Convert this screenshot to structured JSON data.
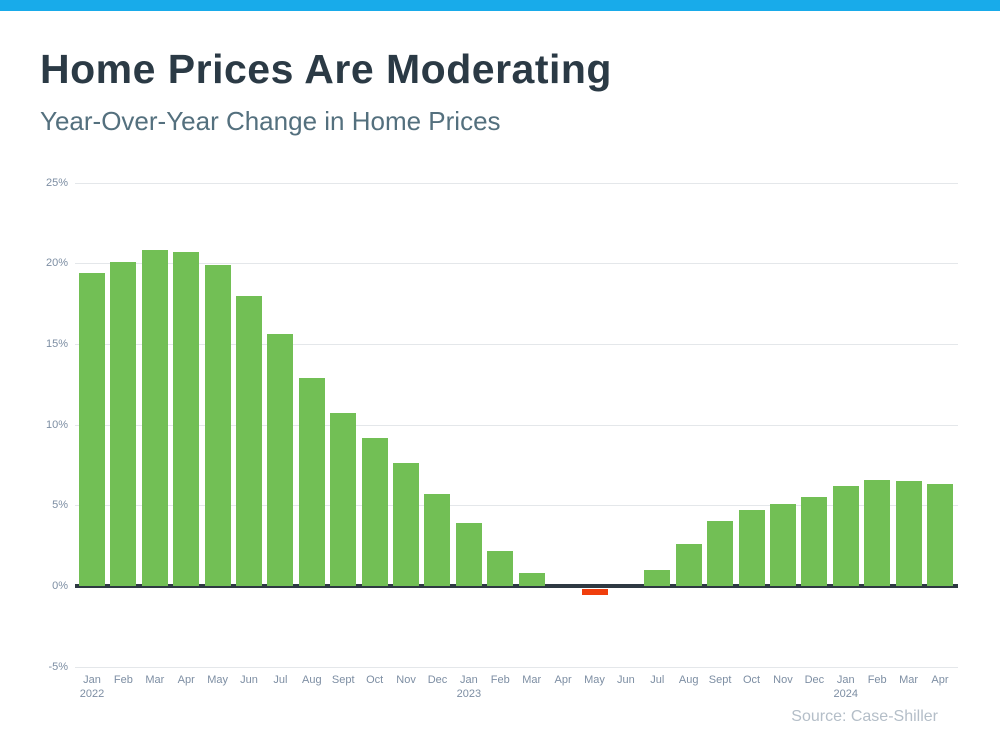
{
  "header": {
    "title": "Home Prices Are Moderating",
    "subtitle": "Year-Over-Year Change in Home Prices"
  },
  "footer": {
    "source": "Source: Case-Shiller"
  },
  "colors": {
    "accent_bar": "#18ABEA",
    "title_text": "#2B3A45",
    "subtitle_text": "#54707E",
    "tick_text": "#7D8EA3",
    "gridline": "#E4E7EA",
    "zero_axis": "#2E3942",
    "source_text": "#B4BEC8",
    "bar_positive": "#72BF55",
    "bar_negative": "#F03E0D"
  },
  "chart_data": {
    "type": "bar",
    "title": "Year-Over-Year Change in Home Prices",
    "xlabel": "",
    "ylabel": "",
    "ylim": [
      -5,
      25
    ],
    "y_ticks": [
      25,
      20,
      15,
      10,
      5,
      0,
      -5
    ],
    "y_tick_suffix": "%",
    "grid": true,
    "legend": false,
    "categories": [
      {
        "month": "Jan",
        "year": "2022"
      },
      {
        "month": "Feb",
        "year": ""
      },
      {
        "month": "Mar",
        "year": ""
      },
      {
        "month": "Apr",
        "year": ""
      },
      {
        "month": "May",
        "year": ""
      },
      {
        "month": "Jun",
        "year": ""
      },
      {
        "month": "Jul",
        "year": ""
      },
      {
        "month": "Aug",
        "year": ""
      },
      {
        "month": "Sept",
        "year": ""
      },
      {
        "month": "Oct",
        "year": ""
      },
      {
        "month": "Nov",
        "year": ""
      },
      {
        "month": "Dec",
        "year": ""
      },
      {
        "month": "Jan",
        "year": "2023"
      },
      {
        "month": "Feb",
        "year": ""
      },
      {
        "month": "Mar",
        "year": ""
      },
      {
        "month": "Apr",
        "year": ""
      },
      {
        "month": "May",
        "year": ""
      },
      {
        "month": "Jun",
        "year": ""
      },
      {
        "month": "Jul",
        "year": ""
      },
      {
        "month": "Aug",
        "year": ""
      },
      {
        "month": "Sept",
        "year": ""
      },
      {
        "month": "Oct",
        "year": ""
      },
      {
        "month": "Nov",
        "year": ""
      },
      {
        "month": "Dec",
        "year": ""
      },
      {
        "month": "Jan",
        "year": "2024"
      },
      {
        "month": "Feb",
        "year": ""
      },
      {
        "month": "Mar",
        "year": ""
      },
      {
        "month": "Apr",
        "year": ""
      }
    ],
    "values": [
      19.4,
      20.1,
      20.8,
      20.7,
      19.9,
      18.0,
      15.6,
      12.9,
      10.7,
      9.2,
      7.6,
      5.7,
      3.9,
      2.2,
      0.8,
      0.0,
      -0.4,
      0.0,
      1.0,
      2.6,
      4.0,
      4.7,
      5.1,
      5.5,
      6.2,
      6.6,
      6.5,
      6.3
    ]
  }
}
